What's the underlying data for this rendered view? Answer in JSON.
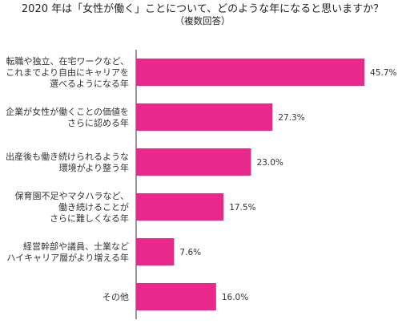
{
  "chart_data": {
    "type": "bar",
    "orientation": "horizontal",
    "title": "2020 年は「女性が働く」ことについて、どのような年になると思いますか？",
    "subtitle": "（複数回答）",
    "categories": [
      [
        "転職や独立、在宅ワークなど、",
        "これまでより自由にキャリアを",
        "選べるようになる年"
      ],
      [
        "企業が女性が働くことの価値を",
        "さらに認める年"
      ],
      [
        "出産後も働き続けられるような",
        "環境がより整う年"
      ],
      [
        "保育園不足やマタハラなど、",
        "働き続けることが",
        "さらに難しくなる年"
      ],
      [
        "経営幹部や議員、士業など",
        "ハイキャリア層がより増える年"
      ],
      [
        "その他"
      ]
    ],
    "values": [
      45.7,
      27.3,
      23.0,
      17.5,
      7.6,
      16.0
    ],
    "value_labels": [
      "45.7%",
      "27.3%",
      "23.0%",
      "17.5%",
      "7.6%",
      "16.0%"
    ],
    "unit": "%",
    "xlim": [
      0,
      50
    ],
    "grid": false,
    "legend": "none",
    "bar_color": "#e8288a",
    "axis_color": "#333333"
  }
}
